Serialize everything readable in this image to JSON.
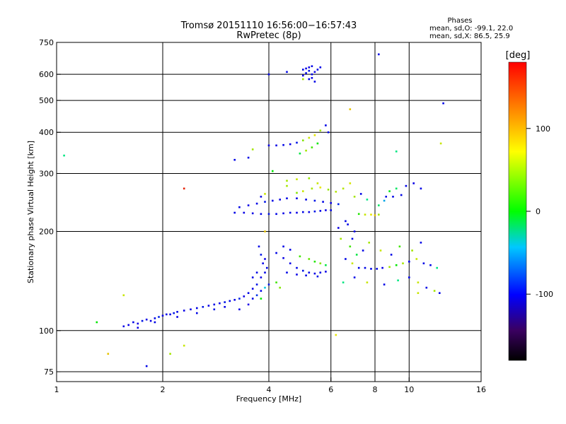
{
  "chart_data": {
    "type": "scatter",
    "title": "Tromsø 20151110 16:56:00−16:57:43",
    "subtitle": "RwPretec (8p)",
    "xlabel": "Frequency [MHz]",
    "ylabel": "Stationary phase Virtual Height [km]",
    "x_scale": "log",
    "y_scale": "log",
    "xlim": [
      1,
      16
    ],
    "ylim": [
      70,
      750
    ],
    "x_ticks": [
      1,
      2,
      4,
      6,
      8,
      10,
      16
    ],
    "x_tick_labels": [
      "1",
      "2",
      "4",
      "6",
      "8",
      "10",
      "16"
    ],
    "y_ticks": [
      75,
      100,
      200,
      300,
      400,
      500,
      600,
      750
    ],
    "y_tick_labels": [
      "75",
      "100",
      "200",
      "300",
      "400",
      "500",
      "600",
      "750"
    ],
    "grid": true,
    "stats": {
      "heading": "Phases",
      "line1": "mean, sd,O:  -99.1, 22.0",
      "line2": "mean, sd,X:   86.5, 25.9"
    },
    "colorbar": {
      "label": "[deg]",
      "range": [
        -180,
        180
      ],
      "ticks": [
        100,
        0,
        -100
      ],
      "tick_labels": [
        "100",
        "0",
        "-100"
      ]
    },
    "series": [
      {
        "points": [
          [
            1.55,
            103,
            -110
          ],
          [
            1.6,
            104,
            -105
          ],
          [
            1.65,
            106,
            -100
          ],
          [
            1.7,
            105,
            -115
          ],
          [
            1.75,
            107,
            -95
          ],
          [
            1.8,
            108,
            -110
          ],
          [
            1.85,
            107,
            -105
          ],
          [
            1.9,
            109,
            -100
          ],
          [
            1.95,
            110,
            -90
          ],
          [
            2.0,
            111,
            -105
          ],
          [
            2.05,
            112,
            -100
          ],
          [
            2.1,
            112,
            -110
          ],
          [
            2.15,
            113,
            -95
          ],
          [
            2.2,
            114,
            -100
          ],
          [
            2.3,
            115,
            -105
          ],
          [
            2.4,
            116,
            -110
          ],
          [
            2.5,
            117,
            -100
          ],
          [
            2.6,
            118,
            -95
          ],
          [
            2.7,
            119,
            -105
          ],
          [
            2.8,
            120,
            -100
          ],
          [
            2.9,
            121,
            -110
          ],
          [
            3.0,
            122,
            -95
          ],
          [
            3.1,
            123,
            -100
          ],
          [
            3.2,
            124,
            -105
          ],
          [
            3.3,
            125,
            -90
          ],
          [
            3.4,
            127,
            -110
          ],
          [
            3.5,
            130,
            -100
          ],
          [
            3.6,
            134,
            -105
          ],
          [
            3.7,
            138,
            -95
          ],
          [
            3.8,
            145,
            -110
          ],
          [
            3.5,
            120,
            -120
          ],
          [
            3.6,
            125,
            -100
          ],
          [
            3.7,
            128,
            -85
          ],
          [
            3.8,
            132,
            -100
          ],
          [
            3.3,
            116,
            -110
          ],
          [
            3.0,
            118,
            -105
          ],
          [
            2.8,
            116,
            -95
          ],
          [
            2.5,
            113,
            -100
          ],
          [
            2.2,
            110,
            -105
          ],
          [
            1.9,
            106,
            -100
          ],
          [
            1.7,
            102,
            -110
          ],
          [
            3.9,
            150,
            -100
          ],
          [
            3.85,
            160,
            -105
          ],
          [
            3.8,
            170,
            -95
          ],
          [
            3.75,
            180,
            -100
          ],
          [
            3.9,
            165,
            -110
          ],
          [
            3.95,
            155,
            -100
          ],
          [
            3.7,
            150,
            -100
          ],
          [
            3.6,
            145,
            -105
          ],
          [
            4.0,
            138,
            -95
          ],
          [
            3.9,
            135,
            -40
          ],
          [
            4.2,
            140,
            60
          ],
          [
            4.3,
            135,
            80
          ],
          [
            3.8,
            125,
            40
          ],
          [
            4.2,
            172,
            -100
          ],
          [
            4.4,
            166,
            -105
          ],
          [
            4.6,
            160,
            -110
          ],
          [
            4.8,
            155,
            -100
          ],
          [
            5.0,
            152,
            -95
          ],
          [
            5.2,
            150,
            -100
          ],
          [
            5.4,
            149,
            -105
          ],
          [
            5.6,
            150,
            -100
          ],
          [
            5.8,
            151,
            -110
          ],
          [
            4.5,
            150,
            -100
          ],
          [
            4.8,
            148,
            -105
          ],
          [
            5.1,
            147,
            -100
          ],
          [
            5.5,
            146,
            -95
          ],
          [
            4.4,
            180,
            -100
          ],
          [
            4.6,
            176,
            -100
          ],
          [
            4.9,
            168,
            60
          ],
          [
            5.2,
            165,
            70
          ],
          [
            5.4,
            162,
            50
          ],
          [
            5.6,
            160,
            80
          ],
          [
            5.8,
            158,
            20
          ],
          [
            3.2,
            228,
            -100
          ],
          [
            3.4,
            228,
            -105
          ],
          [
            3.6,
            227,
            -110
          ],
          [
            3.8,
            226,
            -100
          ],
          [
            4.0,
            226,
            -95
          ],
          [
            4.2,
            226,
            -100
          ],
          [
            4.4,
            227,
            -105
          ],
          [
            4.6,
            228,
            -100
          ],
          [
            4.8,
            228,
            -110
          ],
          [
            5.0,
            229,
            -100
          ],
          [
            5.2,
            229,
            -105
          ],
          [
            5.4,
            230,
            -95
          ],
          [
            5.6,
            231,
            -100
          ],
          [
            5.8,
            232,
            -110
          ],
          [
            6.0,
            232,
            -100
          ],
          [
            3.3,
            237,
            -100
          ],
          [
            3.5,
            240,
            -105
          ],
          [
            3.7,
            243,
            -100
          ],
          [
            3.9,
            246,
            -95
          ],
          [
            4.1,
            248,
            -100
          ],
          [
            4.3,
            250,
            -110
          ],
          [
            4.5,
            252,
            -100
          ],
          [
            4.8,
            252,
            -105
          ],
          [
            5.1,
            250,
            -100
          ],
          [
            5.4,
            248,
            -95
          ],
          [
            5.7,
            246,
            -100
          ],
          [
            6.0,
            244,
            -105
          ],
          [
            6.3,
            242,
            -90
          ],
          [
            4.8,
            262,
            80
          ],
          [
            5.0,
            265,
            100
          ],
          [
            5.3,
            270,
            90
          ],
          [
            5.6,
            272,
            110
          ],
          [
            5.9,
            268,
            85
          ],
          [
            6.2,
            264,
            95
          ],
          [
            4.5,
            285,
            90
          ],
          [
            4.8,
            288,
            100
          ],
          [
            5.2,
            290,
            85
          ],
          [
            5.5,
            280,
            100
          ],
          [
            6.5,
            270,
            95
          ],
          [
            6.8,
            280,
            105
          ],
          [
            7.0,
            255,
            90
          ],
          [
            7.3,
            260,
            -100
          ],
          [
            7.6,
            250,
            0
          ],
          [
            8.2,
            240,
            10
          ],
          [
            8.5,
            248,
            -50
          ],
          [
            8.8,
            265,
            30
          ],
          [
            9.2,
            270,
            10
          ],
          [
            9.8,
            275,
            -100
          ],
          [
            10.3,
            280,
            -105
          ],
          [
            10.8,
            270,
            -100
          ],
          [
            9.5,
            258,
            -100
          ],
          [
            9.0,
            255,
            -100
          ],
          [
            8.6,
            255,
            -95
          ],
          [
            7.5,
            225,
            100
          ],
          [
            7.8,
            225,
            110
          ],
          [
            8.0,
            224,
            120
          ],
          [
            8.2,
            225,
            90
          ],
          [
            7.2,
            226,
            50
          ],
          [
            6.6,
            165,
            -100
          ],
          [
            6.9,
            160,
            100
          ],
          [
            7.2,
            155,
            -100
          ],
          [
            7.5,
            155,
            -100
          ],
          [
            7.8,
            154,
            -100
          ],
          [
            8.1,
            154,
            -100
          ],
          [
            8.4,
            155,
            -105
          ],
          [
            8.8,
            156,
            90
          ],
          [
            9.2,
            158,
            40
          ],
          [
            9.6,
            160,
            90
          ],
          [
            10.0,
            162,
            -100
          ],
          [
            10.5,
            165,
            100
          ],
          [
            11.0,
            160,
            -100
          ],
          [
            11.5,
            158,
            -100
          ],
          [
            12.0,
            155,
            0
          ],
          [
            6.4,
            190,
            90
          ],
          [
            6.8,
            180,
            60
          ],
          [
            7.1,
            170,
            20
          ],
          [
            7.4,
            175,
            -100
          ],
          [
            7.7,
            185,
            90
          ],
          [
            8.3,
            175,
            100
          ],
          [
            8.9,
            170,
            -100
          ],
          [
            9.4,
            180,
            60
          ],
          [
            10.2,
            175,
            90
          ],
          [
            10.8,
            185,
            -100
          ],
          [
            6.5,
            140,
            0
          ],
          [
            7.0,
            145,
            -100
          ],
          [
            7.6,
            140,
            100
          ],
          [
            8.5,
            138,
            -100
          ],
          [
            9.3,
            142,
            0
          ],
          [
            10.0,
            145,
            -100
          ],
          [
            10.6,
            140,
            100
          ],
          [
            11.2,
            135,
            -100
          ],
          [
            11.8,
            132,
            90
          ],
          [
            12.2,
            130,
            -100
          ],
          [
            6.3,
            205,
            -110
          ],
          [
            6.7,
            210,
            -100
          ],
          [
            7.0,
            200,
            -105
          ],
          [
            6.9,
            190,
            -100
          ],
          [
            6.6,
            215,
            -100
          ],
          [
            4.0,
            365,
            -110
          ],
          [
            4.2,
            365,
            -105
          ],
          [
            4.4,
            366,
            -100
          ],
          [
            4.6,
            368,
            -105
          ],
          [
            4.8,
            372,
            -95
          ],
          [
            5.0,
            378,
            80
          ],
          [
            5.2,
            385,
            100
          ],
          [
            5.4,
            392,
            110
          ],
          [
            5.6,
            405,
            90
          ],
          [
            5.8,
            420,
            -100
          ],
          [
            5.5,
            370,
            40
          ],
          [
            5.3,
            360,
            60
          ],
          [
            5.1,
            352,
            90
          ],
          [
            4.9,
            345,
            20
          ],
          [
            5.9,
            400,
            -100
          ],
          [
            5.0,
            620,
            -100
          ],
          [
            5.1,
            625,
            -105
          ],
          [
            5.2,
            630,
            -110
          ],
          [
            5.3,
            635,
            -100
          ],
          [
            5.2,
            615,
            -95
          ],
          [
            5.1,
            605,
            -100
          ],
          [
            5.0,
            595,
            -105
          ],
          [
            5.3,
            600,
            -100
          ],
          [
            5.4,
            610,
            -110
          ],
          [
            5.5,
            620,
            -100
          ],
          [
            5.3,
            585,
            -105
          ],
          [
            5.2,
            580,
            -100
          ],
          [
            5.6,
            630,
            -100
          ],
          [
            5.0,
            580,
            90
          ],
          [
            5.4,
            570,
            -100
          ],
          [
            4.0,
            600,
            -100
          ],
          [
            4.5,
            610,
            -100
          ],
          [
            8.2,
            690,
            -100
          ],
          [
            12.5,
            490,
            -100
          ],
          [
            12.3,
            370,
            100
          ],
          [
            3.2,
            330,
            -100
          ],
          [
            3.5,
            335,
            -100
          ],
          [
            3.6,
            355,
            90
          ],
          [
            1.05,
            340,
            0
          ],
          [
            1.3,
            106,
            40
          ],
          [
            2.3,
            270,
            170
          ],
          [
            1.55,
            128,
            100
          ],
          [
            1.4,
            85,
            120
          ],
          [
            1.8,
            78,
            -100
          ],
          [
            2.1,
            85,
            90
          ],
          [
            2.3,
            90,
            100
          ],
          [
            6.2,
            97,
            110
          ],
          [
            6.8,
            470,
            120
          ],
          [
            9.2,
            350,
            0
          ],
          [
            10.6,
            130,
            100
          ],
          [
            4.1,
            305,
            40
          ],
          [
            4.5,
            275,
            90
          ],
          [
            3.9,
            260,
            100
          ],
          [
            3.8,
            255,
            -100
          ],
          [
            3.9,
            200,
            120
          ]
        ]
      }
    ]
  }
}
